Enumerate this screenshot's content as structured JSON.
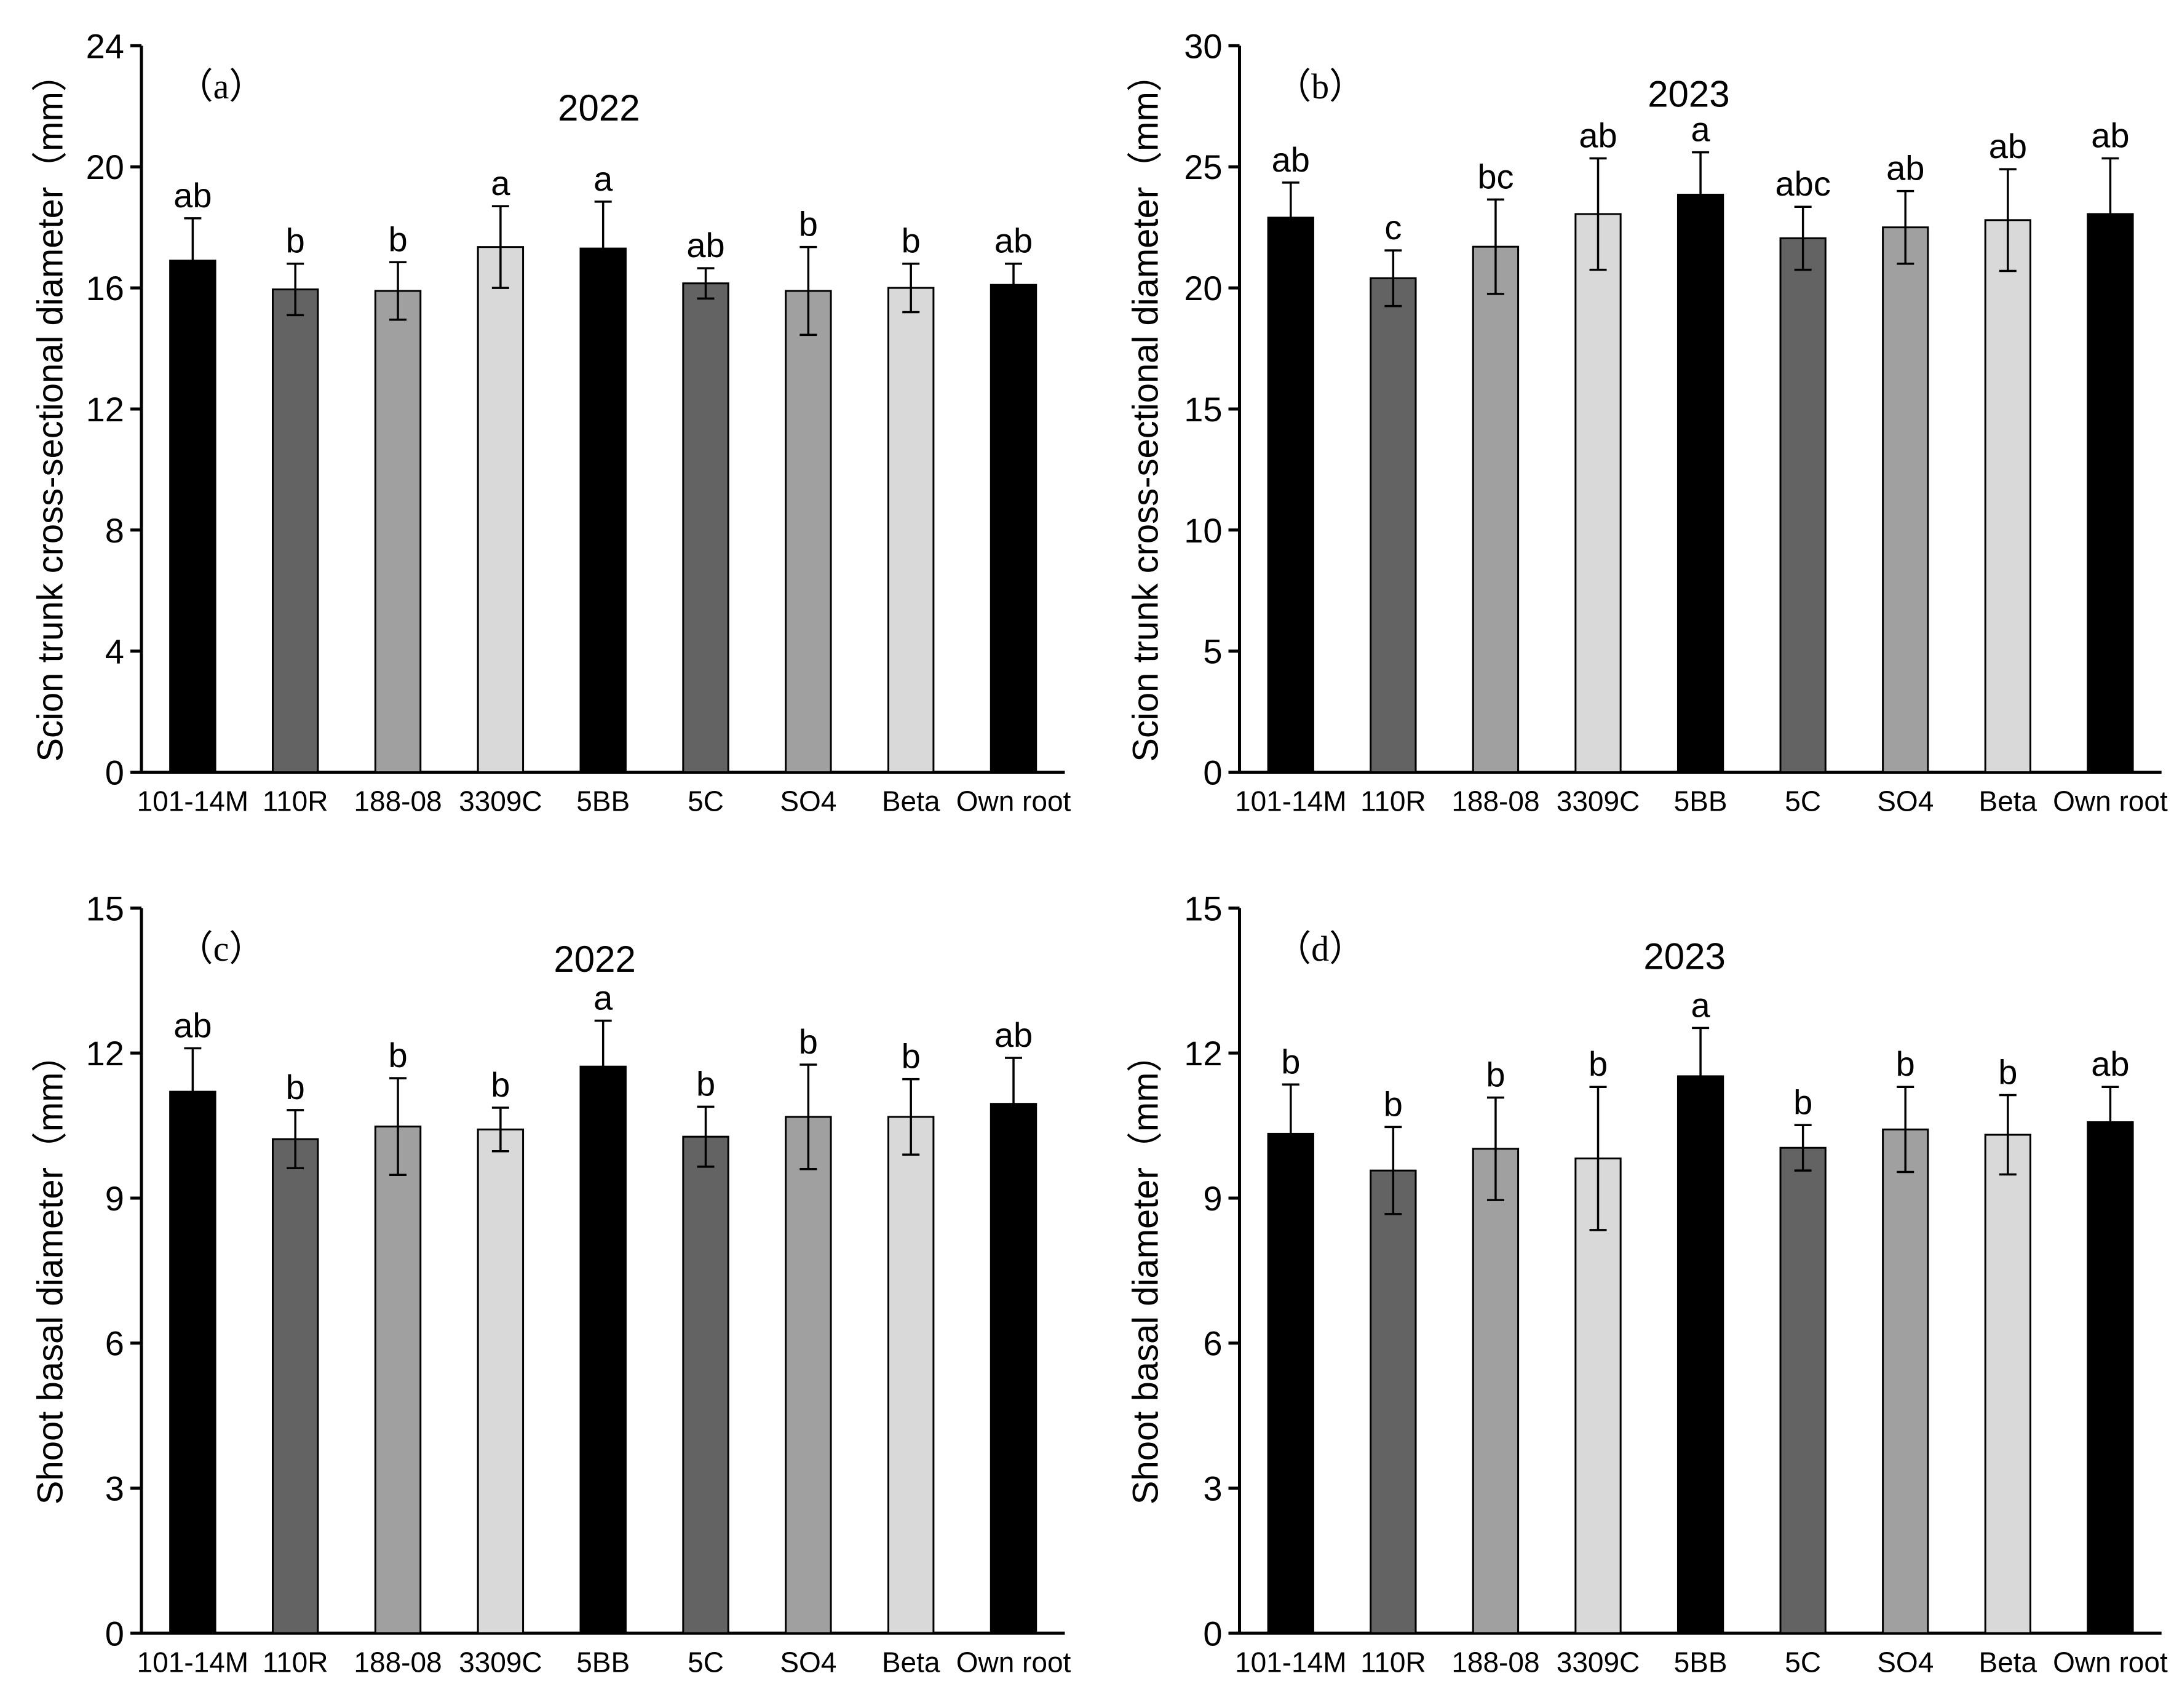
{
  "colors": {
    "bar_fills": [
      "#000000",
      "#636363",
      "#a0a0a0",
      "#d9d9d9"
    ]
  },
  "chart_data": [
    {
      "type": "bar",
      "panel_label": "（a）",
      "title": "2022",
      "ylabel": "Scion trunk cross-sectional diameter（mm）",
      "xlabel": "",
      "categories": [
        "101-14M",
        "110R",
        "188-08",
        "3309C",
        "5BB",
        "5C",
        "SO4",
        "Beta",
        "Own root"
      ],
      "values": [
        16.9,
        15.95,
        15.9,
        17.35,
        17.3,
        16.15,
        15.9,
        16.0,
        16.1
      ],
      "errors": [
        1.4,
        0.85,
        0.95,
        1.35,
        1.55,
        0.5,
        1.45,
        0.8,
        0.7
      ],
      "significance": [
        "ab",
        "b",
        "b",
        "a",
        "a",
        "ab",
        "b",
        "b",
        "ab"
      ],
      "ylim": [
        0,
        24
      ],
      "yticks": [
        0,
        4,
        8,
        12,
        16,
        20,
        24
      ],
      "ytick_labels": [
        "0",
        "4",
        "8",
        "12",
        "16",
        "20",
        "24"
      ],
      "grid": false,
      "legend": "none"
    },
    {
      "type": "bar",
      "panel_label": "（b）",
      "title": "2023",
      "ylabel": "Scion trunk cross-sectional diameter（mm）",
      "xlabel": "",
      "categories": [
        "101-14M",
        "110R",
        "188-08",
        "3309C",
        "5BB",
        "5C",
        "SO4",
        "Beta",
        "Own root"
      ],
      "values": [
        22.9,
        20.4,
        21.7,
        23.05,
        23.85,
        22.05,
        22.5,
        22.8,
        23.05
      ],
      "errors": [
        1.45,
        1.15,
        1.95,
        2.3,
        1.75,
        1.3,
        1.5,
        2.1,
        2.3
      ],
      "significance": [
        "ab",
        "c",
        "bc",
        "ab",
        "a",
        "abc",
        "ab",
        "ab",
        "ab"
      ],
      "ylim": [
        0,
        30
      ],
      "yticks": [
        0,
        5,
        10,
        15,
        20,
        25,
        30
      ],
      "ytick_labels": [
        "0",
        "5",
        "10",
        "15",
        "20",
        "25",
        "30"
      ],
      "grid": false,
      "legend": "none"
    },
    {
      "type": "bar",
      "panel_label": "（c）",
      "title": "2022",
      "ylabel": "Shoot basal  diameter（mm）",
      "xlabel": "",
      "categories": [
        "101-14M",
        "110R",
        "188-08",
        "3309C",
        "5BB",
        "5C",
        "SO4",
        "Beta",
        "Own root"
      ],
      "values": [
        11.2,
        10.22,
        10.48,
        10.42,
        11.72,
        10.27,
        10.68,
        10.68,
        10.95
      ],
      "errors": [
        0.9,
        0.6,
        1.0,
        0.45,
        0.95,
        0.62,
        1.08,
        0.78,
        0.95
      ],
      "significance": [
        "ab",
        "b",
        "b",
        "b",
        "a",
        "b",
        "b",
        "b",
        "ab"
      ],
      "ylim": [
        0,
        15
      ],
      "yticks": [
        0,
        3,
        6,
        9,
        12,
        15
      ],
      "ytick_labels": [
        "0",
        "3",
        "6",
        "9",
        "12",
        "15"
      ],
      "grid": false,
      "legend": "none"
    },
    {
      "type": "bar",
      "panel_label": "（d）",
      "title": "2023",
      "ylabel": "Shoot basal  diameter（mm）",
      "xlabel": "",
      "categories": [
        "101-14M",
        "110R",
        "188-08",
        "3309C",
        "5BB",
        "5C",
        "SO4",
        "Beta",
        "Own root"
      ],
      "values": [
        10.33,
        9.57,
        10.02,
        9.82,
        11.52,
        10.04,
        10.42,
        10.31,
        10.57
      ],
      "errors": [
        1.02,
        0.9,
        1.06,
        1.48,
        1.0,
        0.47,
        0.88,
        0.82,
        0.73
      ],
      "significance": [
        "b",
        "b",
        "b",
        "b",
        "a",
        "b",
        "b",
        "b",
        "ab"
      ],
      "ylim": [
        0,
        15
      ],
      "yticks": [
        0,
        3,
        6,
        9,
        12,
        15
      ],
      "ytick_labels": [
        "0",
        "3",
        "6",
        "9",
        "12",
        "15"
      ],
      "grid": false,
      "legend": "none"
    }
  ]
}
